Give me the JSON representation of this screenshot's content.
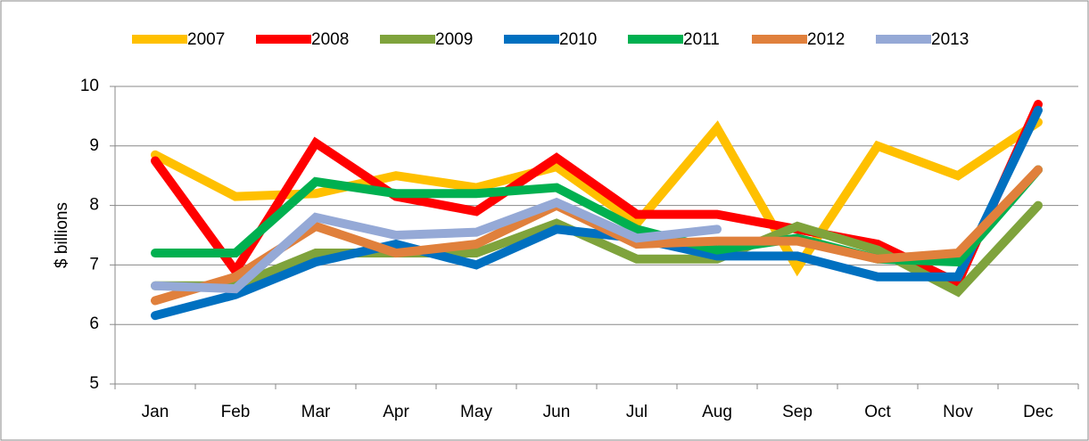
{
  "chart_data": {
    "type": "line",
    "y_label": "$ billions",
    "categories": [
      "Jan",
      "Feb",
      "Mar",
      "Apr",
      "May",
      "Jun",
      "Jul",
      "Aug",
      "Sep",
      "Oct",
      "Nov",
      "Dec"
    ],
    "series": [
      {
        "name": "2007",
        "color": "#FFC000",
        "values": [
          8.85,
          8.15,
          8.2,
          8.5,
          8.3,
          8.65,
          7.7,
          9.3,
          6.95,
          9.0,
          8.5,
          9.4
        ]
      },
      {
        "name": "2008",
        "color": "#FF0000",
        "values": [
          8.75,
          6.9,
          9.05,
          8.15,
          7.9,
          8.8,
          7.85,
          7.85,
          7.6,
          7.35,
          6.7,
          9.7
        ]
      },
      {
        "name": "2009",
        "color": "#7FA33C",
        "values": [
          6.65,
          6.65,
          7.2,
          7.2,
          7.2,
          7.7,
          7.1,
          7.1,
          7.65,
          7.25,
          6.55,
          8.0
        ]
      },
      {
        "name": "2010",
        "color": "#0070C0",
        "values": [
          6.15,
          6.5,
          7.05,
          7.35,
          7.0,
          7.6,
          7.45,
          7.15,
          7.15,
          6.8,
          6.8,
          9.6
        ]
      },
      {
        "name": "2011",
        "color": "#00B050",
        "values": [
          7.2,
          7.2,
          8.4,
          8.2,
          8.2,
          8.3,
          7.6,
          7.25,
          7.45,
          7.1,
          7.05,
          8.6
        ]
      },
      {
        "name": "2012",
        "color": "#E0803C",
        "values": [
          6.4,
          6.8,
          7.65,
          7.2,
          7.35,
          8.0,
          7.35,
          7.4,
          7.4,
          7.1,
          7.2,
          8.6
        ]
      },
      {
        "name": "2013",
        "color": "#95A9D6",
        "values": [
          6.65,
          6.6,
          7.8,
          7.5,
          7.55,
          8.05,
          7.45,
          7.6,
          null,
          null,
          null,
          null
        ]
      }
    ],
    "ylim": [
      5,
      10
    ],
    "yticks": [
      5,
      6,
      7,
      8,
      9,
      10
    ],
    "grid": true,
    "legend": "top"
  }
}
